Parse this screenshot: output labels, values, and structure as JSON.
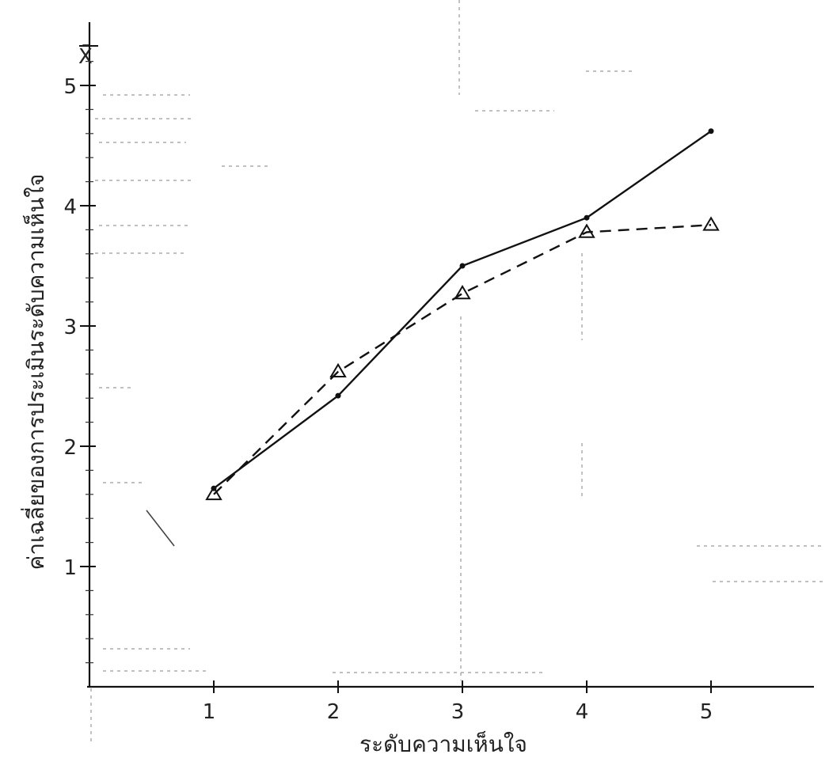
{
  "chart_data": {
    "type": "line",
    "xlabel": "ระดับความเห็นใจ",
    "ylabel": "ค่าเฉลี่ยของการประเมินระดับความเห็นใจ",
    "y_axis_symbol": "X̄",
    "x_ticks": [
      1,
      2,
      3,
      4,
      5
    ],
    "y_ticks": [
      1,
      2,
      3,
      4,
      5
    ],
    "xlim": [
      0,
      5.8
    ],
    "ylim": [
      0,
      5.5
    ],
    "grid": false,
    "series": [
      {
        "style": "solid",
        "marker": "dot",
        "x": [
          1,
          2,
          3,
          4,
          5
        ],
        "y": [
          1.65,
          2.42,
          3.5,
          3.9,
          4.62
        ]
      },
      {
        "style": "dashed",
        "marker": "triangle",
        "x": [
          1,
          2,
          3,
          4,
          5
        ],
        "y": [
          1.6,
          2.62,
          3.27,
          3.78,
          3.84
        ]
      }
    ]
  }
}
